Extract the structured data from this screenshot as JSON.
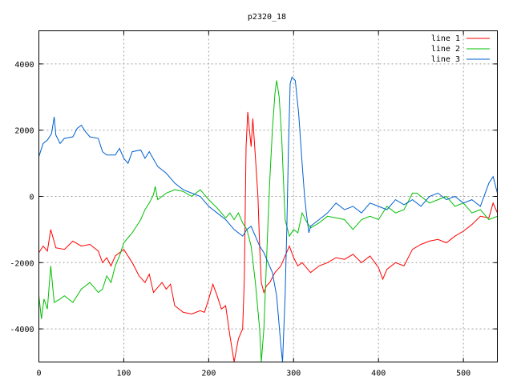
{
  "chart_data": {
    "type": "line",
    "title": "p2320_18",
    "xlabel": "",
    "ylabel": "",
    "xlim": [
      0,
      540
    ],
    "ylim": [
      -5000,
      5000
    ],
    "xticks": [
      0,
      100,
      200,
      300,
      400,
      500
    ],
    "yticks": [
      -4000,
      -2000,
      0,
      2000,
      4000
    ],
    "grid": true,
    "legend_position": "top-right",
    "series": [
      {
        "name": "line 1",
        "color": "#ff0000",
        "points": [
          [
            0,
            -1700
          ],
          [
            5,
            -1500
          ],
          [
            10,
            -1650
          ],
          [
            14,
            -1000
          ],
          [
            20,
            -1550
          ],
          [
            30,
            -1600
          ],
          [
            40,
            -1350
          ],
          [
            50,
            -1500
          ],
          [
            60,
            -1450
          ],
          [
            70,
            -1650
          ],
          [
            75,
            -2000
          ],
          [
            80,
            -1850
          ],
          [
            85,
            -2100
          ],
          [
            90,
            -1800
          ],
          [
            100,
            -1600
          ],
          [
            110,
            -2000
          ],
          [
            118,
            -2400
          ],
          [
            125,
            -2600
          ],
          [
            130,
            -2350
          ],
          [
            135,
            -2900
          ],
          [
            145,
            -2600
          ],
          [
            150,
            -2800
          ],
          [
            155,
            -2650
          ],
          [
            160,
            -3300
          ],
          [
            170,
            -3500
          ],
          [
            180,
            -3550
          ],
          [
            190,
            -3450
          ],
          [
            195,
            -3500
          ],
          [
            200,
            -3100
          ],
          [
            205,
            -2650
          ],
          [
            210,
            -3000
          ],
          [
            215,
            -3400
          ],
          [
            220,
            -3300
          ],
          [
            225,
            -4200
          ],
          [
            230,
            -5000
          ],
          [
            235,
            -4300
          ],
          [
            240,
            -4000
          ],
          [
            242,
            -2500
          ],
          [
            244,
            1500
          ],
          [
            246,
            2550
          ],
          [
            248,
            2000
          ],
          [
            250,
            1500
          ],
          [
            252,
            2350
          ],
          [
            255,
            1200
          ],
          [
            258,
            0
          ],
          [
            260,
            -1500
          ],
          [
            262,
            -2600
          ],
          [
            265,
            -2900
          ],
          [
            268,
            -2700
          ],
          [
            272,
            -2600
          ],
          [
            278,
            -2300
          ],
          [
            285,
            -2100
          ],
          [
            290,
            -1800
          ],
          [
            295,
            -1500
          ],
          [
            300,
            -1850
          ],
          [
            305,
            -2100
          ],
          [
            310,
            -2000
          ],
          [
            320,
            -2300
          ],
          [
            330,
            -2100
          ],
          [
            340,
            -2000
          ],
          [
            350,
            -1850
          ],
          [
            360,
            -1900
          ],
          [
            370,
            -1750
          ],
          [
            380,
            -2000
          ],
          [
            390,
            -1800
          ],
          [
            400,
            -2150
          ],
          [
            405,
            -2500
          ],
          [
            410,
            -2200
          ],
          [
            420,
            -2000
          ],
          [
            430,
            -2100
          ],
          [
            440,
            -1600
          ],
          [
            450,
            -1450
          ],
          [
            460,
            -1350
          ],
          [
            470,
            -1300
          ],
          [
            480,
            -1400
          ],
          [
            490,
            -1200
          ],
          [
            500,
            -1050
          ],
          [
            510,
            -850
          ],
          [
            520,
            -600
          ],
          [
            530,
            -650
          ],
          [
            535,
            -200
          ],
          [
            540,
            -500
          ]
        ]
      },
      {
        "name": "line 2",
        "color": "#00c000",
        "points": [
          [
            0,
            -3000
          ],
          [
            3,
            -3700
          ],
          [
            6,
            -3100
          ],
          [
            10,
            -3400
          ],
          [
            14,
            -2100
          ],
          [
            18,
            -3200
          ],
          [
            25,
            -3100
          ],
          [
            30,
            -3000
          ],
          [
            40,
            -3200
          ],
          [
            50,
            -2800
          ],
          [
            60,
            -2600
          ],
          [
            70,
            -2900
          ],
          [
            75,
            -2800
          ],
          [
            80,
            -2400
          ],
          [
            85,
            -2600
          ],
          [
            90,
            -2100
          ],
          [
            95,
            -1800
          ],
          [
            100,
            -1400
          ],
          [
            110,
            -1100
          ],
          [
            120,
            -700
          ],
          [
            125,
            -400
          ],
          [
            130,
            -200
          ],
          [
            135,
            50
          ],
          [
            137,
            300
          ],
          [
            140,
            -100
          ],
          [
            150,
            100
          ],
          [
            160,
            200
          ],
          [
            170,
            150
          ],
          [
            180,
            0
          ],
          [
            190,
            200
          ],
          [
            200,
            -100
          ],
          [
            210,
            -350
          ],
          [
            220,
            -650
          ],
          [
            225,
            -500
          ],
          [
            230,
            -700
          ],
          [
            235,
            -500
          ],
          [
            240,
            -800
          ],
          [
            245,
            -1000
          ],
          [
            250,
            -1500
          ],
          [
            255,
            -2600
          ],
          [
            260,
            -4000
          ],
          [
            262,
            -5000
          ],
          [
            265,
            -4000
          ],
          [
            268,
            -2000
          ],
          [
            270,
            -700
          ],
          [
            272,
            500
          ],
          [
            275,
            2000
          ],
          [
            278,
            3100
          ],
          [
            280,
            3500
          ],
          [
            283,
            3000
          ],
          [
            286,
            1800
          ],
          [
            288,
            500
          ],
          [
            290,
            -700
          ],
          [
            295,
            -1200
          ],
          [
            300,
            -1000
          ],
          [
            305,
            -1100
          ],
          [
            310,
            -500
          ],
          [
            315,
            -750
          ],
          [
            320,
            -950
          ],
          [
            330,
            -800
          ],
          [
            340,
            -600
          ],
          [
            350,
            -650
          ],
          [
            360,
            -700
          ],
          [
            370,
            -1000
          ],
          [
            380,
            -700
          ],
          [
            390,
            -600
          ],
          [
            400,
            -700
          ],
          [
            410,
            -300
          ],
          [
            420,
            -500
          ],
          [
            430,
            -400
          ],
          [
            440,
            100
          ],
          [
            445,
            100
          ],
          [
            450,
            0
          ],
          [
            460,
            -200
          ],
          [
            470,
            -100
          ],
          [
            480,
            0
          ],
          [
            490,
            -300
          ],
          [
            500,
            -200
          ],
          [
            510,
            -500
          ],
          [
            520,
            -400
          ],
          [
            530,
            -700
          ],
          [
            540,
            -600
          ]
        ]
      },
      {
        "name": "line 3",
        "color": "#0060d0",
        "points": [
          [
            0,
            1200
          ],
          [
            5,
            1600
          ],
          [
            10,
            1700
          ],
          [
            15,
            1900
          ],
          [
            18,
            2400
          ],
          [
            20,
            1850
          ],
          [
            25,
            1600
          ],
          [
            30,
            1750
          ],
          [
            40,
            1800
          ],
          [
            45,
            2050
          ],
          [
            50,
            2150
          ],
          [
            55,
            1950
          ],
          [
            60,
            1800
          ],
          [
            70,
            1750
          ],
          [
            75,
            1350
          ],
          [
            80,
            1250
          ],
          [
            90,
            1250
          ],
          [
            95,
            1450
          ],
          [
            100,
            1150
          ],
          [
            105,
            1000
          ],
          [
            110,
            1350
          ],
          [
            120,
            1400
          ],
          [
            125,
            1150
          ],
          [
            130,
            1350
          ],
          [
            140,
            900
          ],
          [
            150,
            700
          ],
          [
            160,
            400
          ],
          [
            170,
            200
          ],
          [
            180,
            100
          ],
          [
            190,
            0
          ],
          [
            200,
            -300
          ],
          [
            210,
            -500
          ],
          [
            220,
            -700
          ],
          [
            230,
            -1000
          ],
          [
            240,
            -1200
          ],
          [
            245,
            -1000
          ],
          [
            250,
            -900
          ],
          [
            255,
            -1200
          ],
          [
            260,
            -1500
          ],
          [
            265,
            -1700
          ],
          [
            270,
            -2000
          ],
          [
            275,
            -2300
          ],
          [
            280,
            -3000
          ],
          [
            285,
            -4500
          ],
          [
            287,
            -5000
          ],
          [
            290,
            -3000
          ],
          [
            292,
            -1000
          ],
          [
            294,
            1500
          ],
          [
            296,
            3400
          ],
          [
            298,
            3600
          ],
          [
            302,
            3500
          ],
          [
            306,
            2500
          ],
          [
            310,
            1000
          ],
          [
            313,
            0
          ],
          [
            315,
            -500
          ],
          [
            318,
            -1100
          ],
          [
            320,
            -900
          ],
          [
            325,
            -800
          ],
          [
            330,
            -700
          ],
          [
            340,
            -500
          ],
          [
            350,
            -200
          ],
          [
            360,
            -400
          ],
          [
            370,
            -300
          ],
          [
            380,
            -500
          ],
          [
            390,
            -200
          ],
          [
            400,
            -300
          ],
          [
            410,
            -400
          ],
          [
            420,
            -100
          ],
          [
            430,
            -250
          ],
          [
            440,
            -100
          ],
          [
            450,
            -300
          ],
          [
            460,
            0
          ],
          [
            470,
            100
          ],
          [
            480,
            -100
          ],
          [
            490,
            0
          ],
          [
            500,
            -200
          ],
          [
            510,
            -100
          ],
          [
            520,
            -300
          ],
          [
            530,
            400
          ],
          [
            535,
            600
          ],
          [
            540,
            100
          ]
        ]
      }
    ]
  }
}
